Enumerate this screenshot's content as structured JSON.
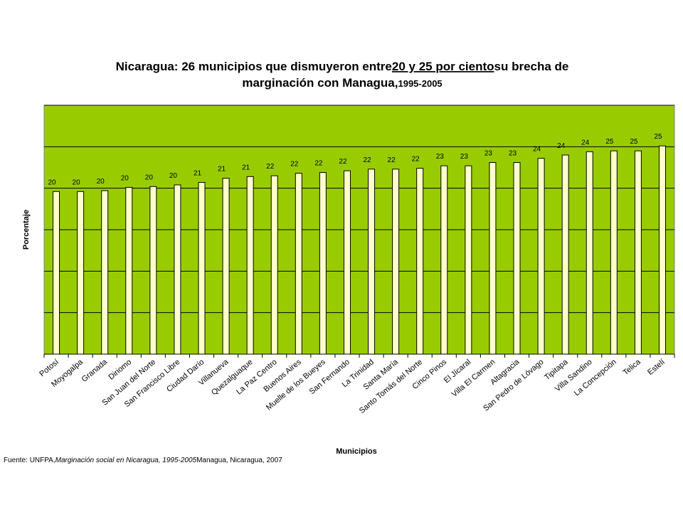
{
  "chart_data": {
    "type": "bar",
    "title": {
      "line1_start": "Nicaragua: 26 municipios que dismuyeron entre",
      "line1_underlined": "20 y 25 por ciento",
      "line1_end": "su brecha de",
      "line2": "marginación con Managua,",
      "line2_small": "1995-2005"
    },
    "x_label": "Municipios",
    "y_label": "Porcentaje",
    "source": {
      "start": "Fuente: UNFPA,",
      "italic": "Marginación social en Nicaragua, 1995-2005",
      "end": "Managua, Nicaragua, 2007"
    },
    "categories": [
      "Potosí",
      "Moyogalpa",
      "Granada",
      "Diriomo",
      "San Juan del Norte",
      "San Francisco Libre",
      "Ciudad Darío",
      "Villanueva",
      "Quezalguaque",
      "La Paz Centro",
      "Buenos Aires",
      "Muelle de los Bueyes",
      "San Fernando",
      "La Trinidad",
      "Santa María",
      "Santo Tomás del Norte",
      "Cinco Pinos",
      "El Jícaral",
      "Villa El Carmen",
      "Altagracia",
      "San Pedro de Lóvago",
      "Tipitapa",
      "Villa Sandino",
      "La Concepción",
      "Telica",
      "Estelí"
    ],
    "values": [
      19.6,
      19.6,
      19.7,
      20.1,
      20.2,
      20.4,
      20.7,
      21.2,
      21.4,
      21.5,
      21.8,
      21.9,
      22.1,
      22.3,
      22.3,
      22.4,
      22.7,
      22.7,
      23.1,
      23.1,
      23.6,
      24.0,
      24.4,
      24.5,
      24.5,
      25.1
    ],
    "value_labels": [
      "20",
      "20",
      "20",
      "20",
      "20",
      "20",
      "21",
      "21",
      "21",
      "22",
      "22",
      "22",
      "22",
      "22",
      "22",
      "22",
      "23",
      "23",
      "23",
      "23",
      "24",
      "24",
      "24",
      "25",
      "25",
      "25"
    ],
    "color": "#ffffcc",
    "background": "#99cc00",
    "ylim": [
      0,
      30
    ],
    "yticks": [
      0,
      5,
      10,
      15,
      20,
      25,
      30
    ],
    "grid": true
  }
}
